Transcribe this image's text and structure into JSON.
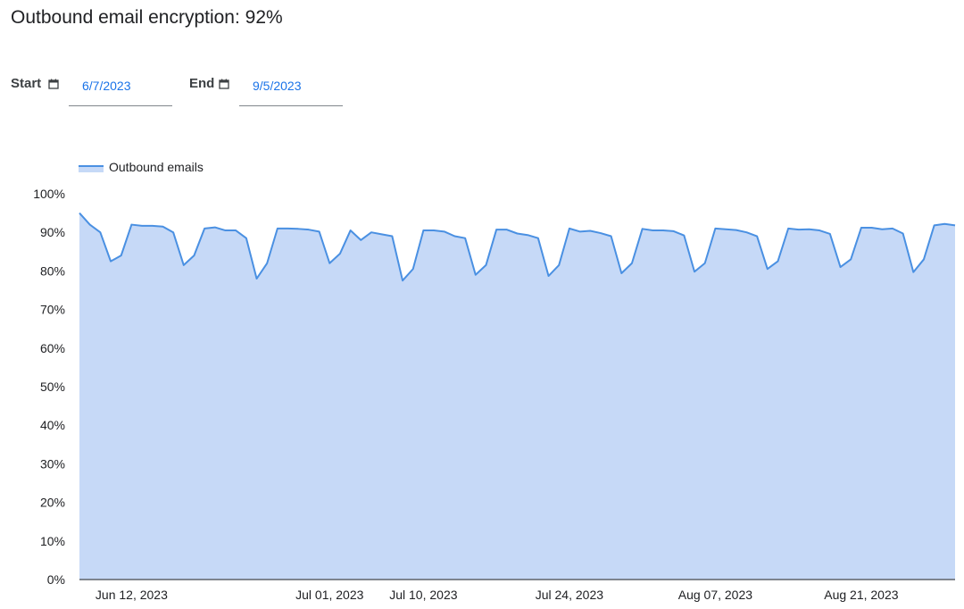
{
  "header": {
    "title": "Outbound email encryption: 92%"
  },
  "filters": {
    "start": {
      "label": "Start",
      "value": "6/7/2023",
      "icon": "calendar-icon"
    },
    "end": {
      "label": "End",
      "value": "9/5/2023",
      "icon": "calendar-icon"
    }
  },
  "colors": {
    "line": "#4a90e2",
    "fill": "#c6d9f7",
    "axis": "#5f6368",
    "date_text": "#1a73e8"
  },
  "chart_data": {
    "type": "area",
    "title": "",
    "xlabel": "",
    "ylabel": "",
    "ylim": [
      0,
      100
    ],
    "yticks": [
      0,
      10,
      20,
      30,
      40,
      50,
      60,
      70,
      80,
      90,
      100
    ],
    "ytick_format": "{v}%",
    "x_start": "2023-06-07",
    "xticks": [
      {
        "date": "2023-06-12",
        "label": "Jun 12, 2023"
      },
      {
        "date": "2023-07-01",
        "label": "Jul 01, 2023"
      },
      {
        "date": "2023-07-10",
        "label": "Jul 10, 2023"
      },
      {
        "date": "2023-07-24",
        "label": "Jul 24, 2023"
      },
      {
        "date": "2023-08-07",
        "label": "Aug 07, 2023"
      },
      {
        "date": "2023-08-21",
        "label": "Aug 21, 2023"
      }
    ],
    "legend": {
      "position": "top-left"
    },
    "series": [
      {
        "name": "Outbound emails",
        "values": [
          95,
          92,
          90,
          82.5,
          84,
          92,
          91.7,
          91.7,
          91.5,
          90,
          81.5,
          84,
          91,
          91.3,
          90.5,
          90.5,
          88.5,
          78,
          82,
          91,
          91,
          90.9,
          90.7,
          90.2,
          82,
          84.5,
          90.5,
          88,
          90,
          89.5,
          89,
          77.5,
          80.5,
          90.5,
          90.5,
          90.2,
          89,
          88.5,
          79,
          81.5,
          90.7,
          90.7,
          89.7,
          89.3,
          88.5,
          78.7,
          81.5,
          91,
          90.2,
          90.4,
          89.8,
          89,
          79.4,
          82,
          90.9,
          90.5,
          90.5,
          90.3,
          89.2,
          79.8,
          82,
          91,
          90.8,
          90.6,
          90,
          89,
          80.5,
          82.5,
          91,
          90.7,
          90.8,
          90.5,
          89.6,
          81,
          83,
          91.2,
          91.2,
          90.8,
          91,
          89.7,
          79.7,
          83,
          91.8,
          92.2,
          91.8
        ]
      }
    ]
  }
}
